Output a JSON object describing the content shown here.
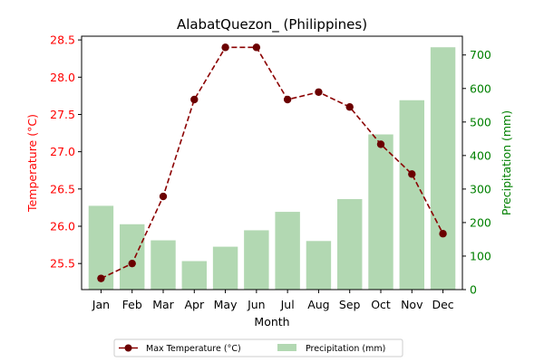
{
  "chart_data": {
    "type": "bar+line",
    "title": "AlabatQuezon_ (Philippines)",
    "xlabel": "Month",
    "categories": [
      "Jan",
      "Feb",
      "Mar",
      "Apr",
      "May",
      "Jun",
      "Jul",
      "Aug",
      "Sep",
      "Oct",
      "Nov",
      "Dec"
    ],
    "left_axis": {
      "label": "Temperature (°C)",
      "ylim": [
        25.15,
        28.55
      ],
      "ticks": [
        25.5,
        26.0,
        26.5,
        27.0,
        27.5,
        28.0,
        28.5
      ],
      "tick_labels": [
        "25.5",
        "26.0",
        "26.5",
        "27.0",
        "27.5",
        "28.0",
        "28.5"
      ],
      "color": "#ff0000"
    },
    "right_axis": {
      "label": "Precipitation (mm)",
      "ylim": [
        0,
        756
      ],
      "ticks": [
        0,
        100,
        200,
        300,
        400,
        500,
        600,
        700
      ],
      "tick_labels": [
        "0",
        "100",
        "200",
        "300",
        "400",
        "500",
        "600",
        "700"
      ],
      "color": "#008000"
    },
    "series": [
      {
        "name": "Max Temperature (°C)",
        "kind": "line",
        "axis": "left",
        "color": "#8b0000",
        "marker_color": "#6b0000",
        "values": [
          25.3,
          25.5,
          26.4,
          27.7,
          28.4,
          28.4,
          27.7,
          27.8,
          27.6,
          27.1,
          26.7,
          25.9
        ]
      },
      {
        "name": "Precipitation (mm)",
        "kind": "bar",
        "axis": "right",
        "color": "#b2d8b2",
        "values": [
          250,
          195,
          147,
          85,
          128,
          177,
          232,
          145,
          270,
          463,
          565,
          723
        ]
      }
    ],
    "legend_placement": "bottom-center",
    "grid": false
  }
}
